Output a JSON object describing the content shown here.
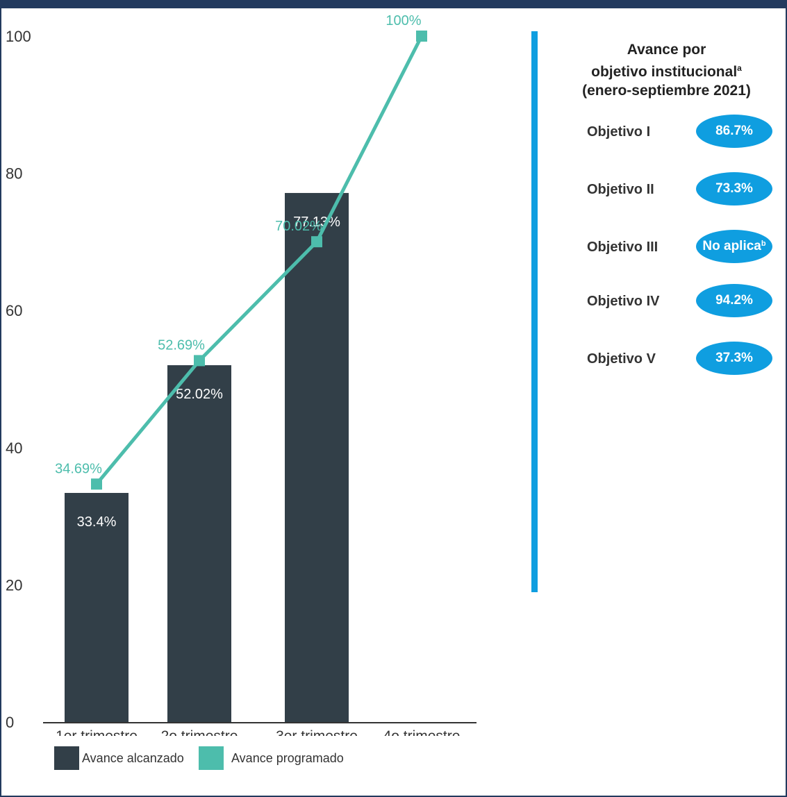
{
  "chart_data": {
    "type": "bar",
    "categories": [
      "1er trimestre",
      "2o trimestre",
      "3er trimestre",
      "4o trimestre"
    ],
    "ylim": [
      0,
      100
    ],
    "yticks": [
      0,
      20,
      40,
      60,
      80,
      100
    ],
    "grid": false,
    "legend_position": "bottom-left",
    "series": [
      {
        "name": "Avance alcanzado",
        "kind": "bar",
        "color": "#323f48",
        "values": [
          33.4,
          52.02,
          77.13,
          null
        ],
        "labels": [
          "33.4%",
          "52.02%",
          "77.13%",
          ""
        ]
      },
      {
        "name": "Avance programado",
        "kind": "line",
        "color": "#4dbdac",
        "values": [
          34.69,
          52.69,
          70.02,
          100
        ],
        "labels": [
          "34.69%",
          "52.69%",
          "70.02%",
          "100%"
        ]
      }
    ]
  },
  "panel": {
    "title_line1": "Avance por",
    "title_line2": "objetivo institucional",
    "title_sup": "a",
    "title_line3": "(enero-septiembre 2021)",
    "objectives": [
      {
        "label": "Objetivo I",
        "value": "86.7%"
      },
      {
        "label": "Objetivo II",
        "value": "73.3%"
      },
      {
        "label": "Objetivo III",
        "value": "No aplica",
        "sup": "b"
      },
      {
        "label": "Objetivo IV",
        "value": "94.2%"
      },
      {
        "label": "Objetivo V",
        "value": "37.3%"
      }
    ]
  },
  "colors": {
    "accent": "#0f9ee0",
    "bar": "#323f48",
    "line": "#4dbdac",
    "frame": "#223a5e"
  }
}
